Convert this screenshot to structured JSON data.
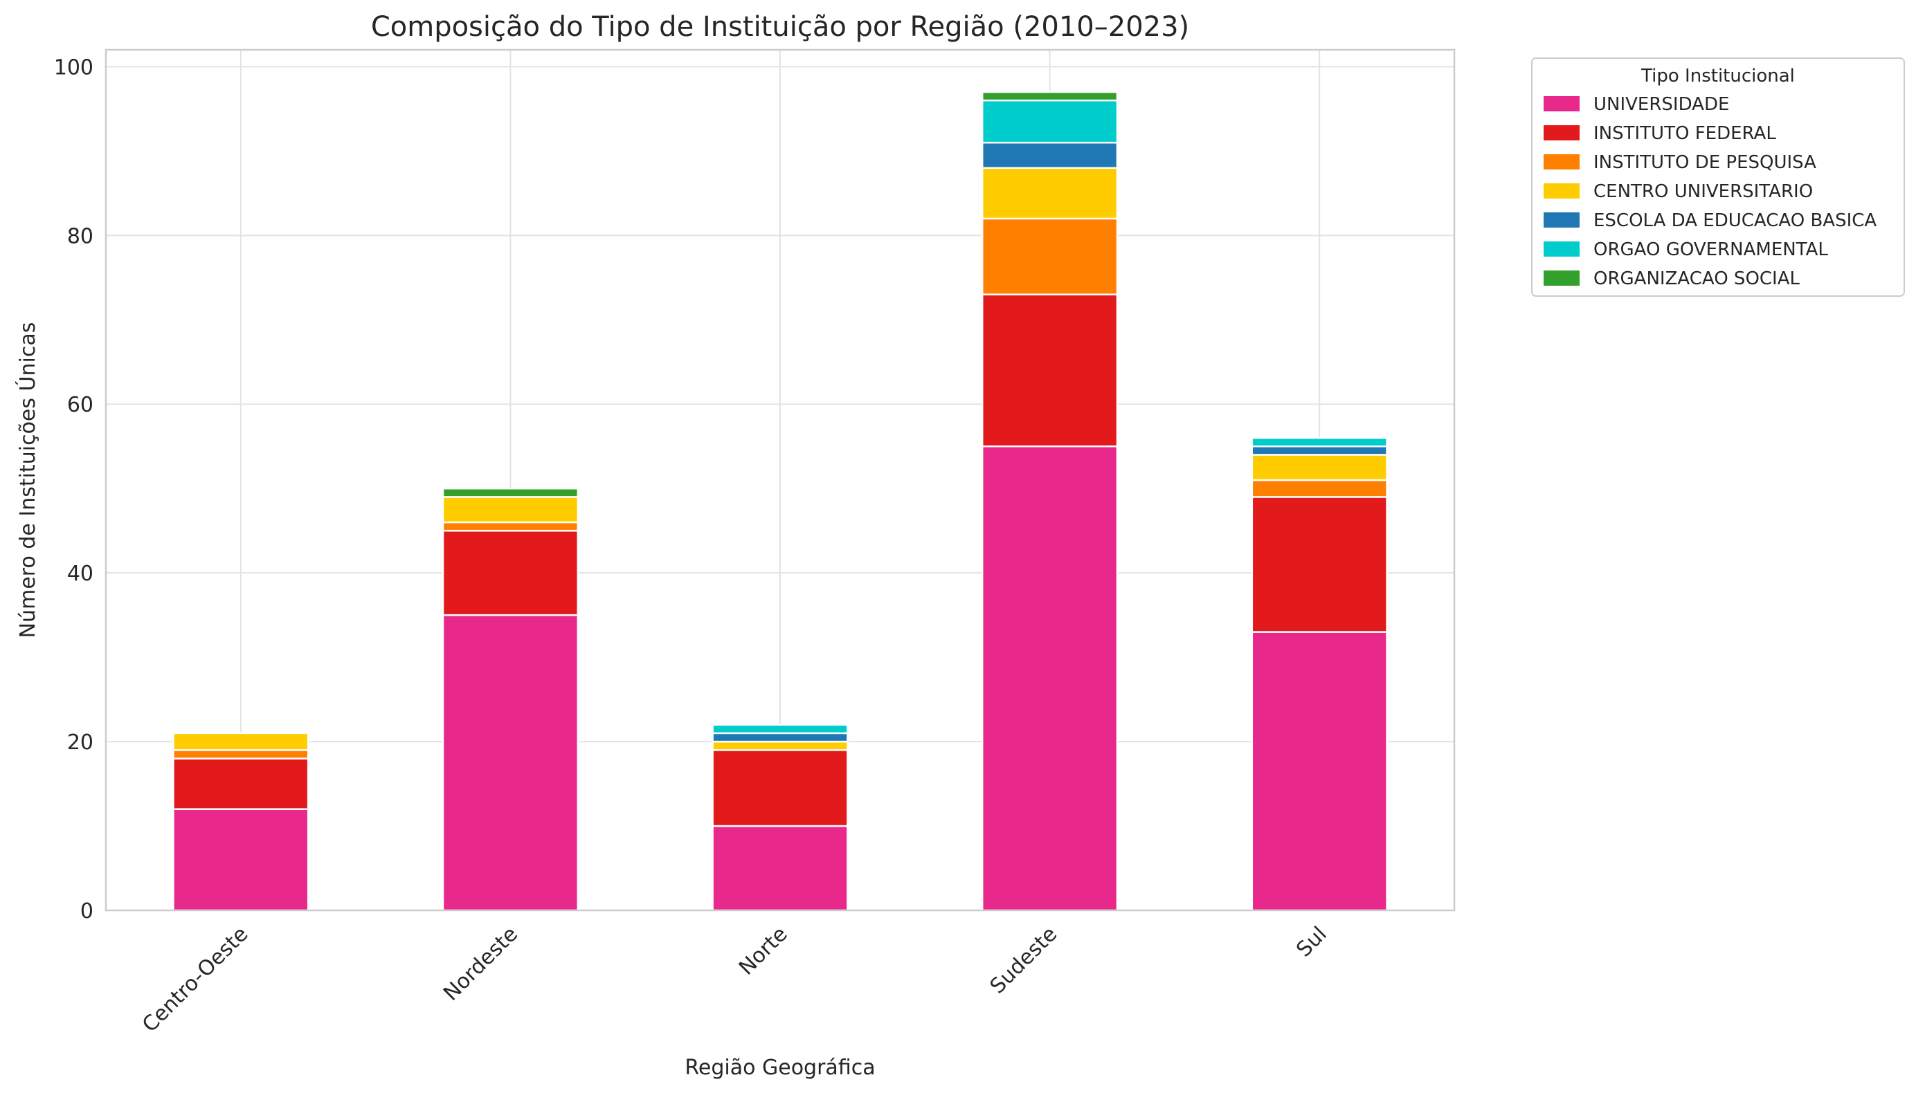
{
  "chart_data": {
    "type": "bar",
    "stacked": true,
    "title": "Composição do Tipo de Instituição por Região (2010–2023)",
    "xlabel": "Região Geográfica",
    "ylabel": "Número de Instituições Únicas",
    "ylim": [
      0,
      102
    ],
    "yticks": [
      0,
      20,
      40,
      60,
      80,
      100
    ],
    "grid": true,
    "legend_title": "Tipo Institucional",
    "legend_position": "outside-top-right",
    "categories": [
      "Centro-Oeste",
      "Nordeste",
      "Norte",
      "Sudeste",
      "Sul"
    ],
    "series": [
      {
        "name": "UNIVERSIDADE",
        "color": "#e8288a",
        "values": [
          12,
          35,
          10,
          55,
          33
        ]
      },
      {
        "name": "INSTITUTO FEDERAL",
        "color": "#e31a1c",
        "values": [
          6,
          10,
          9,
          18,
          16
        ]
      },
      {
        "name": "INSTITUTO DE PESQUISA",
        "color": "#ff7f00",
        "values": [
          1,
          1,
          0,
          9,
          2
        ]
      },
      {
        "name": "CENTRO UNIVERSITARIO",
        "color": "#ffcc00",
        "values": [
          2,
          3,
          1,
          6,
          3
        ]
      },
      {
        "name": "ESCOLA DA EDUCACAO BASICA",
        "color": "#1f78b4",
        "values": [
          0,
          0,
          1,
          3,
          1
        ]
      },
      {
        "name": "ORGAO GOVERNAMENTAL",
        "color": "#00cccc",
        "values": [
          0,
          0,
          1,
          5,
          1
        ]
      },
      {
        "name": "ORGANIZACAO SOCIAL",
        "color": "#33a02c",
        "values": [
          0,
          1,
          0,
          1,
          0
        ]
      }
    ]
  }
}
